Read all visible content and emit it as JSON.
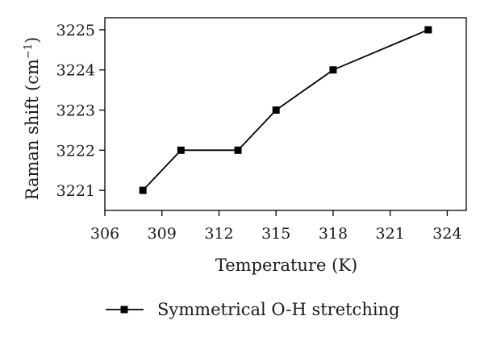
{
  "chart_data": {
    "type": "line",
    "xlabel": "Temperature (K)",
    "ylabel_main": "Raman shift (cm",
    "ylabel_sup": "−1",
    "ylabel_close": ")",
    "xlim": [
      306,
      325
    ],
    "ylim": [
      3220.5,
      3225.3
    ],
    "xticks": [
      306,
      309,
      312,
      315,
      318,
      321,
      324
    ],
    "yticks": [
      3221,
      3222,
      3223,
      3224,
      3225
    ],
    "series": [
      {
        "name": "Symmetrical O-H stretching",
        "x": [
          308,
          310,
          313,
          315,
          318,
          323
        ],
        "y": [
          3221,
          3222,
          3222,
          3223,
          3224,
          3225
        ]
      }
    ],
    "legend_position": "bottom-center",
    "grid": false,
    "line_color": "#000000",
    "marker": "square"
  }
}
